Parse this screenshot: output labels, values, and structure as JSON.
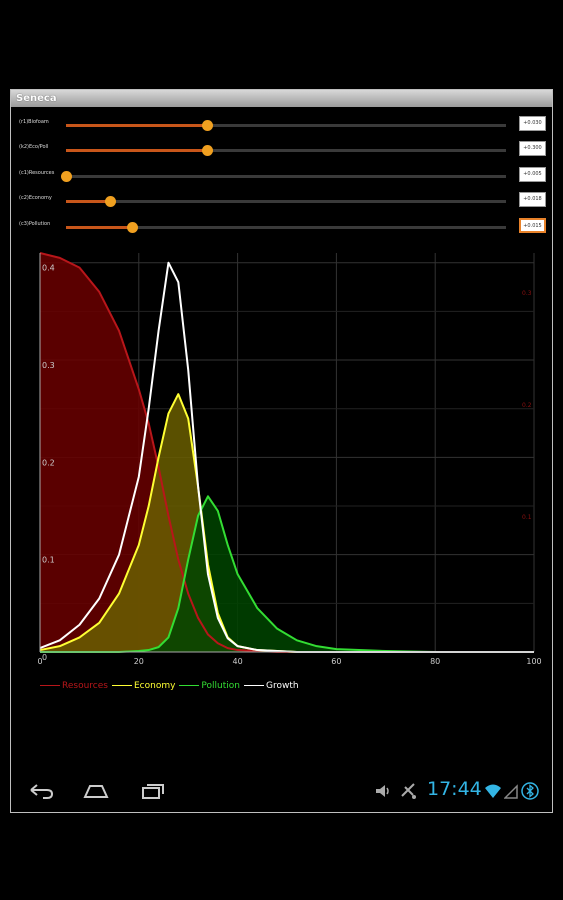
{
  "app": {
    "title": "Seneca"
  },
  "sliders": [
    {
      "label": "(r1)Biofoam",
      "fraction": 0.32,
      "value": "+0.030",
      "focused": false
    },
    {
      "label": "(k2)Eco/Poll",
      "fraction": 0.32,
      "value": "+0.300",
      "focused": false
    },
    {
      "label": "(c1)Resources",
      "fraction": 0.0,
      "value": "+0.005",
      "focused": false
    },
    {
      "label": "(c2)Economy",
      "fraction": 0.1,
      "value": "+0.018",
      "focused": false
    },
    {
      "label": "(c3)Pollution",
      "fraction": 0.15,
      "value": "+0.015",
      "focused": true
    }
  ],
  "chart_data": {
    "type": "area",
    "x": [
      0,
      4,
      8,
      12,
      16,
      20,
      22,
      24,
      26,
      28,
      30,
      32,
      34,
      36,
      38,
      40,
      44,
      48,
      52,
      56,
      60,
      70,
      80,
      90,
      100
    ],
    "xlim": [
      0,
      100
    ],
    "ylim": [
      0,
      0.41
    ],
    "xticks": [
      "0",
      "20",
      "40",
      "60",
      "80",
      "100"
    ],
    "yticks": [
      "0",
      "0.1",
      "0.2",
      "0.3",
      "0.4"
    ],
    "right_ticks": [
      "0.1",
      "0.2",
      "0.3"
    ],
    "grid": true,
    "legend_position": "bottom-left",
    "series": [
      {
        "name": "Resources",
        "color": "#b8161a",
        "fill": "#6a0000",
        "values": [
          0.41,
          0.405,
          0.395,
          0.37,
          0.33,
          0.27,
          0.235,
          0.19,
          0.14,
          0.095,
          0.06,
          0.035,
          0.018,
          0.009,
          0.004,
          0.002,
          0.001,
          0,
          0,
          0,
          0,
          0,
          0,
          0,
          0
        ]
      },
      {
        "name": "Economy",
        "color": "#ffff33",
        "fill": "#6a5e00",
        "values": [
          0.002,
          0.006,
          0.015,
          0.03,
          0.06,
          0.11,
          0.15,
          0.2,
          0.245,
          0.265,
          0.24,
          0.17,
          0.09,
          0.04,
          0.015,
          0.006,
          0.002,
          0.001,
          0,
          0,
          0,
          0,
          0,
          0,
          0
        ]
      },
      {
        "name": "Pollution",
        "color": "#33dd33",
        "fill": "#004400",
        "values": [
          0,
          0,
          0,
          0,
          0,
          0.001,
          0.002,
          0.005,
          0.015,
          0.045,
          0.095,
          0.14,
          0.16,
          0.145,
          0.11,
          0.08,
          0.045,
          0.024,
          0.012,
          0.006,
          0.003,
          0.001,
          0,
          0,
          0
        ]
      },
      {
        "name": "Growth",
        "color": "#ffffff",
        "fill": "none",
        "values": [
          0.004,
          0.012,
          0.028,
          0.055,
          0.1,
          0.18,
          0.25,
          0.33,
          0.4,
          0.38,
          0.29,
          0.17,
          0.08,
          0.035,
          0.014,
          0.006,
          0.002,
          0.001,
          0,
          0,
          0,
          0,
          0,
          0,
          0
        ]
      }
    ]
  },
  "status": {
    "time": "17:44"
  },
  "colors": {
    "accent": "#e8822a",
    "clock": "#33b5e5"
  }
}
